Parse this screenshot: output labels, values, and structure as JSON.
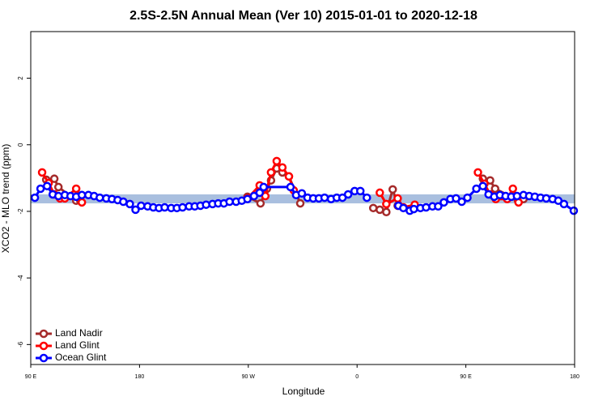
{
  "chart_data": {
    "type": "line",
    "title": "2.5S-2.5N Annual Mean (Ver 10)   2015-01-01 to 2020-12-18",
    "x_label": "Longitude",
    "y_label": "XCO2 - MLO trend (ppm)",
    "xlim": [
      90,
      540
    ],
    "ylim": [
      -6.6,
      3.4
    ],
    "xticks": [
      {
        "value": 90,
        "label": "90 E"
      },
      {
        "value": 180,
        "label": "180"
      },
      {
        "value": 270,
        "label": "90 W"
      },
      {
        "value": 360,
        "label": "0"
      },
      {
        "value": 450,
        "label": "90 E"
      },
      {
        "value": 540,
        "label": "180"
      }
    ],
    "yticks": [
      -6,
      -4,
      -2,
      0,
      2
    ],
    "band": {
      "ymin": -1.76,
      "ymax": -1.49,
      "color": "#a9bfdf"
    },
    "legend": "bottom-left",
    "series": [
      {
        "name": "Land Nadir",
        "color": "#a52a2a",
        "x": [
          102.8,
          109.5,
          112.9,
          127.6,
          131,
          null,
          269.3,
          280.1,
          285.4,
          288.8,
          293.5,
          298.2,
          303.6,
          313,
          null,
          373.4,
          378.8,
          384.2,
          389.5,
          393.6,
          null,
          464.1,
          470.1,
          474.2,
          493,
          497.7
        ],
        "values": [
          -1.05,
          -1.02,
          -1.27,
          -1.68,
          -1.68,
          null,
          -1.56,
          -1.76,
          -1.32,
          -1.07,
          -0.71,
          -0.83,
          -0.95,
          -1.76,
          null,
          -1.9,
          -1.95,
          -2.02,
          -1.34,
          -1.83,
          null,
          -1.02,
          -1.07,
          -1.32,
          -1.66,
          -1.63
        ]
      },
      {
        "name": "Land Glint",
        "color": "#ff0000",
        "x": [
          99.4,
          104.8,
          109.5,
          114.2,
          118.2,
          127.6,
          132.3,
          null,
          269.3,
          279.4,
          284.1,
          288.8,
          293.5,
          298.2,
          303.6,
          307.6,
          null,
          378.8,
          384.2,
          393.6,
          398.3,
          407.7,
          null,
          460,
          465.4,
          470.1,
          474.8,
          484.2,
          488.9,
          493.6
        ],
        "values": [
          -0.83,
          -1.15,
          -1.49,
          -1.61,
          -1.61,
          -1.32,
          -1.73,
          null,
          -1.61,
          -1.22,
          -1.54,
          -0.83,
          -0.49,
          -0.68,
          -0.95,
          -1.37,
          null,
          -1.44,
          -1.78,
          -1.61,
          -1.88,
          -1.8,
          null,
          -0.83,
          -1.17,
          -1.49,
          -1.63,
          -1.63,
          -1.32,
          -1.73
        ]
      },
      {
        "name": "Ocean Glint",
        "color": "#0000ff",
        "x": [
          93.4,
          98.1,
          103.5,
          108.2,
          112.9,
          118.2,
          122.9,
          127.6,
          132.3,
          137.7,
          142.4,
          147.1,
          152.5,
          157.2,
          161.9,
          166.6,
          172,
          176.7,
          181.3,
          186.7,
          191.4,
          196.1,
          200.8,
          206.2,
          210.9,
          215.6,
          221,
          225.7,
          230.4,
          235.1,
          240.4,
          245.1,
          249.8,
          254.5,
          259.9,
          264.6,
          269.3,
          274.7,
          279.4,
          282.7,
          304.9,
          309.6,
          314.3,
          319,
          323.7,
          328.4,
          333.1,
          338.5,
          343.2,
          347.9,
          352.6,
          358,
          362.7,
          368.1,
          null,
          394.2,
          398.3,
          403.6,
          407,
          412.4,
          417.1,
          422.4,
          427.1,
          431.8,
          437.2,
          441.9,
          446.6,
          451.3,
          458.7,
          464.1,
          468.8,
          473.5,
          478.2,
          482.9,
          487.6,
          492.3,
          497.7,
          502.4,
          507.1,
          511.8,
          516.5,
          521.8,
          526.5,
          531.2,
          539.3
        ],
        "values": [
          -1.59,
          -1.32,
          -1.24,
          -1.49,
          -1.54,
          -1.51,
          -1.54,
          -1.56,
          -1.51,
          -1.51,
          -1.54,
          -1.59,
          -1.61,
          -1.63,
          -1.66,
          -1.71,
          -1.78,
          -1.95,
          -1.83,
          -1.85,
          -1.88,
          -1.9,
          -1.88,
          -1.9,
          -1.9,
          -1.88,
          -1.85,
          -1.85,
          -1.83,
          -1.8,
          -1.78,
          -1.76,
          -1.76,
          -1.71,
          -1.71,
          -1.68,
          -1.63,
          -1.54,
          -1.44,
          -1.27,
          -1.27,
          -1.51,
          -1.46,
          -1.59,
          -1.61,
          -1.61,
          -1.59,
          -1.63,
          -1.59,
          -1.59,
          -1.49,
          -1.39,
          -1.39,
          -1.59,
          null,
          -1.83,
          -1.9,
          -1.98,
          -1.93,
          -1.9,
          -1.88,
          -1.85,
          -1.85,
          -1.73,
          -1.63,
          -1.61,
          -1.71,
          -1.59,
          -1.32,
          -1.24,
          -1.49,
          -1.56,
          -1.51,
          -1.54,
          -1.56,
          -1.54,
          -1.51,
          -1.54,
          -1.56,
          -1.59,
          -1.61,
          -1.63,
          -1.68,
          -1.78,
          -1.98
        ]
      }
    ]
  }
}
